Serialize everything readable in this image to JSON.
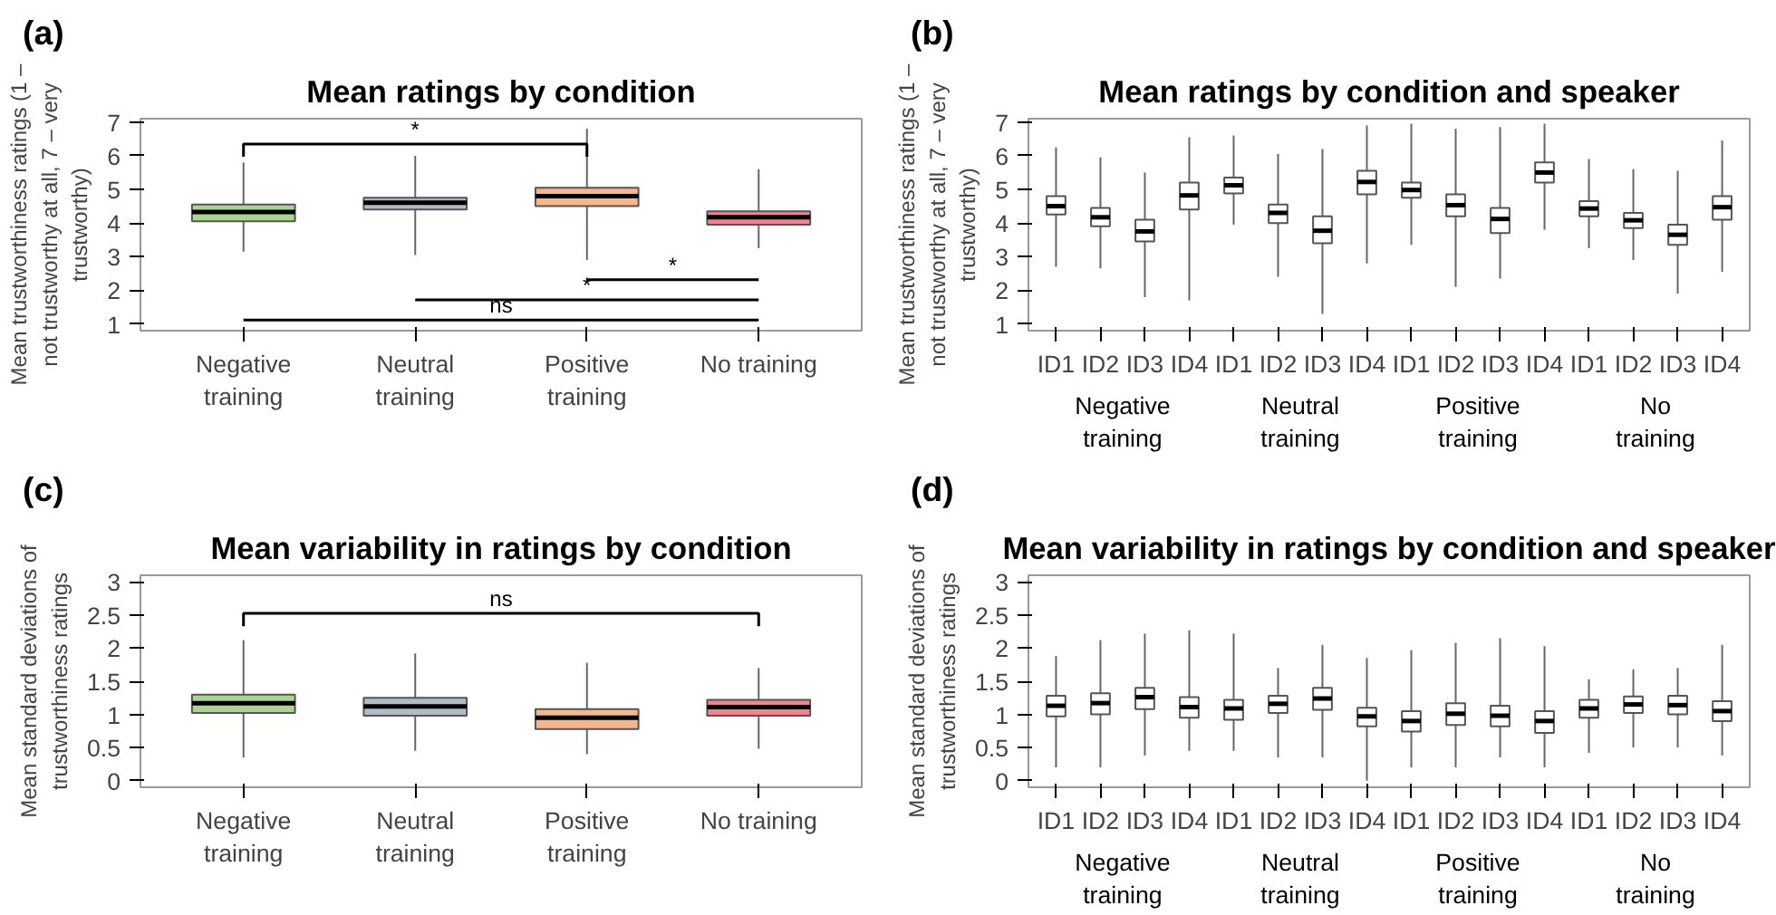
{
  "chart_data": [
    {
      "type": "box",
      "title": "Mean ratings by condition",
      "ylabel": "Mean trustworthiness ratings (1 – not trustworthy at all, 7 – very trustworthy)",
      "annotations": [
        "(a)",
        "*",
        "*",
        "*",
        "ns"
      ],
      "categories": [
        "Negative training",
        "Neutral training",
        "Positive training",
        "No training"
      ],
      "colors": [
        "#9ccc7c",
        "#a4b0bd",
        "#f5aa78",
        "#ef6f7a"
      ],
      "ylim": [
        0.8,
        7.1
      ],
      "yticks": [
        1,
        2,
        3,
        4,
        5,
        6,
        7
      ],
      "grid": false,
      "boxes": [
        {
          "low": 3.15,
          "q1": 4.05,
          "median": 4.33,
          "q3": 4.55,
          "high": 5.8
        },
        {
          "low": 3.05,
          "q1": 4.4,
          "median": 4.6,
          "q3": 4.75,
          "high": 6.0
        },
        {
          "low": 2.9,
          "q1": 4.5,
          "median": 4.8,
          "q3": 5.05,
          "high": 6.8
        },
        {
          "low": 3.25,
          "q1": 3.95,
          "median": 4.17,
          "q3": 4.35,
          "high": 5.6
        }
      ]
    },
    {
      "type": "box",
      "title": "Mean ratings by condition and speaker",
      "ylabel": "Mean trustworthiness ratings (1 – not trustworthy at all, 7 – very trustworthy)",
      "annotations": [
        "(b)",
        "Negative training",
        "Neutral training",
        "Positive training",
        "No training"
      ],
      "categories": [
        "ID1",
        "ID2",
        "ID3",
        "ID4",
        "ID1",
        "ID2",
        "ID3",
        "ID4",
        "ID1",
        "ID2",
        "ID3",
        "ID4",
        "ID1",
        "ID2",
        "ID3",
        "ID4"
      ],
      "ylim": [
        0.8,
        7.1
      ],
      "yticks": [
        1,
        2,
        3,
        4,
        5,
        6,
        7
      ],
      "grid": false,
      "boxes": [
        {
          "low": 2.7,
          "q1": 4.25,
          "median": 4.5,
          "q3": 4.8,
          "high": 6.25
        },
        {
          "low": 2.65,
          "q1": 3.9,
          "median": 4.17,
          "q3": 4.45,
          "high": 5.95
        },
        {
          "low": 1.8,
          "q1": 3.45,
          "median": 3.75,
          "q3": 4.1,
          "high": 5.5
        },
        {
          "low": 1.7,
          "q1": 4.4,
          "median": 4.82,
          "q3": 5.2,
          "high": 6.55
        },
        {
          "low": 3.95,
          "q1": 4.88,
          "median": 5.12,
          "q3": 5.35,
          "high": 6.6
        },
        {
          "low": 2.4,
          "q1": 4.0,
          "median": 4.3,
          "q3": 4.55,
          "high": 6.05
        },
        {
          "low": 1.3,
          "q1": 3.4,
          "median": 3.77,
          "q3": 4.2,
          "high": 6.2
        },
        {
          "low": 2.8,
          "q1": 4.85,
          "median": 5.22,
          "q3": 5.55,
          "high": 6.9
        },
        {
          "low": 3.35,
          "q1": 4.75,
          "median": 4.98,
          "q3": 5.2,
          "high": 6.95
        },
        {
          "low": 2.1,
          "q1": 4.2,
          "median": 4.53,
          "q3": 4.85,
          "high": 6.8
        },
        {
          "low": 2.35,
          "q1": 3.7,
          "median": 4.12,
          "q3": 4.45,
          "high": 6.85
        },
        {
          "low": 3.8,
          "q1": 5.2,
          "median": 5.5,
          "q3": 5.8,
          "high": 6.95
        },
        {
          "low": 3.25,
          "q1": 4.2,
          "median": 4.43,
          "q3": 4.65,
          "high": 5.9
        },
        {
          "low": 2.9,
          "q1": 3.85,
          "median": 4.08,
          "q3": 4.3,
          "high": 5.6
        },
        {
          "low": 1.9,
          "q1": 3.35,
          "median": 3.65,
          "q3": 3.95,
          "high": 5.55
        },
        {
          "low": 2.55,
          "q1": 4.1,
          "median": 4.47,
          "q3": 4.8,
          "high": 6.45
        }
      ]
    },
    {
      "type": "box",
      "title": "Mean variability in ratings by condition",
      "ylabel": "Mean standard deviations of trustworthiness ratings",
      "annotations": [
        "(c)",
        "ns"
      ],
      "categories": [
        "Negative training",
        "Neutral training",
        "Positive training",
        "No training"
      ],
      "colors": [
        "#9ccc7c",
        "#a4b0bd",
        "#f5aa78",
        "#ef6f7a"
      ],
      "ylim": [
        -0.1,
        3.1
      ],
      "yticks": [
        0,
        0.5,
        1,
        1.5,
        2,
        2.5,
        3
      ],
      "grid": false,
      "boxes": [
        {
          "low": 0.35,
          "q1": 1.02,
          "median": 1.17,
          "q3": 1.3,
          "high": 2.12
        },
        {
          "low": 0.45,
          "q1": 0.98,
          "median": 1.12,
          "q3": 1.25,
          "high": 1.92
        },
        {
          "low": 0.4,
          "q1": 0.78,
          "median": 0.95,
          "q3": 1.08,
          "high": 1.78
        },
        {
          "low": 0.48,
          "q1": 0.98,
          "median": 1.11,
          "q3": 1.22,
          "high": 1.7
        }
      ]
    },
    {
      "type": "box",
      "title": "Mean variability in ratings by condition and speaker",
      "ylabel": "Mean standard deviations of trustworthiness ratings",
      "annotations": [
        "(d)",
        "Negative training",
        "Neutral training",
        "Positive training",
        "No training"
      ],
      "categories": [
        "ID1",
        "ID2",
        "ID3",
        "ID4",
        "ID1",
        "ID2",
        "ID3",
        "ID4",
        "ID1",
        "ID2",
        "ID3",
        "ID4",
        "ID1",
        "ID2",
        "ID3",
        "ID4"
      ],
      "ylim": [
        -0.1,
        3.1
      ],
      "yticks": [
        0,
        0.5,
        1,
        1.5,
        2,
        2.5,
        3
      ],
      "grid": false,
      "boxes": [
        {
          "low": 0.2,
          "q1": 0.97,
          "median": 1.13,
          "q3": 1.28,
          "high": 1.88
        },
        {
          "low": 0.2,
          "q1": 1.0,
          "median": 1.17,
          "q3": 1.32,
          "high": 2.12
        },
        {
          "low": 0.38,
          "q1": 1.08,
          "median": 1.26,
          "q3": 1.4,
          "high": 2.22
        },
        {
          "low": 0.45,
          "q1": 0.95,
          "median": 1.11,
          "q3": 1.26,
          "high": 2.27
        },
        {
          "low": 0.45,
          "q1": 0.92,
          "median": 1.09,
          "q3": 1.22,
          "high": 2.22
        },
        {
          "low": 0.35,
          "q1": 1.02,
          "median": 1.16,
          "q3": 1.28,
          "high": 1.7
        },
        {
          "low": 0.35,
          "q1": 1.07,
          "median": 1.24,
          "q3": 1.4,
          "high": 2.05
        },
        {
          "low": 0.0,
          "q1": 0.82,
          "median": 0.97,
          "q3": 1.1,
          "high": 1.85
        },
        {
          "low": 0.2,
          "q1": 0.74,
          "median": 0.9,
          "q3": 1.05,
          "high": 1.97
        },
        {
          "low": 0.2,
          "q1": 0.84,
          "median": 1.01,
          "q3": 1.17,
          "high": 2.08
        },
        {
          "low": 0.35,
          "q1": 0.82,
          "median": 0.98,
          "q3": 1.13,
          "high": 2.15
        },
        {
          "low": 0.2,
          "q1": 0.72,
          "median": 0.9,
          "q3": 1.05,
          "high": 2.03
        },
        {
          "low": 0.42,
          "q1": 0.95,
          "median": 1.09,
          "q3": 1.22,
          "high": 1.53
        },
        {
          "low": 0.5,
          "q1": 1.02,
          "median": 1.15,
          "q3": 1.27,
          "high": 1.68
        },
        {
          "low": 0.5,
          "q1": 1.0,
          "median": 1.14,
          "q3": 1.28,
          "high": 1.7
        },
        {
          "low": 0.38,
          "q1": 0.9,
          "median": 1.05,
          "q3": 1.2,
          "high": 2.05
        }
      ]
    }
  ]
}
